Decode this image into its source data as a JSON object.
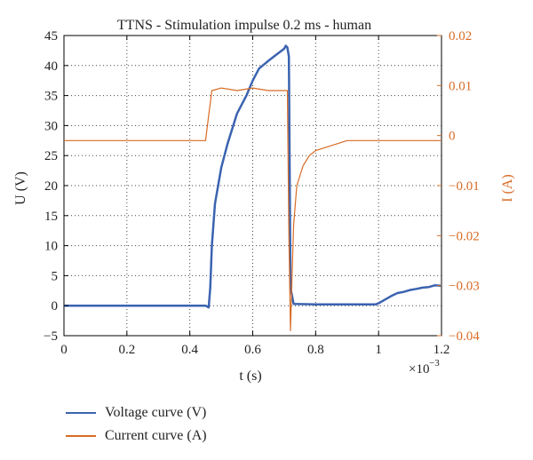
{
  "chart_data": {
    "type": "line",
    "title": "TTNS - Stimulation impulse 0.2 ms - human",
    "xlabel": "t (s)",
    "x_multiplier_label": "×10",
    "x_multiplier_exp": "−3",
    "ylabel_left": "U (V)",
    "ylabel_right": "I (A)",
    "xlim": [
      0,
      1.2
    ],
    "ylim_left": [
      -5,
      45
    ],
    "ylim_right": [
      -0.04,
      0.02
    ],
    "x_ticks": [
      "0",
      "0.2",
      "0.4",
      "0.6",
      "0.8",
      "1",
      "1.2"
    ],
    "y_left_ticks": [
      "−5",
      "0",
      "5",
      "10",
      "15",
      "20",
      "25",
      "30",
      "35",
      "40",
      "45"
    ],
    "y_right_ticks": [
      "−0.04",
      "−0.03",
      "−0.02",
      "−0.01",
      "0",
      "0.01",
      "0.02"
    ],
    "grid": true,
    "legend_placement": "bottom",
    "series": [
      {
        "name": "Voltage curve (V)",
        "axis": "left",
        "color": "#3b63b0",
        "x": [
          0,
          0.1,
          0.2,
          0.3,
          0.4,
          0.45,
          0.46,
          0.465,
          0.47,
          0.48,
          0.5,
          0.52,
          0.55,
          0.58,
          0.6,
          0.62,
          0.65,
          0.68,
          0.7,
          0.705,
          0.71,
          0.715,
          0.72,
          0.73,
          0.8,
          0.9,
          0.99,
          1.0,
          1.02,
          1.04,
          1.06,
          1.08,
          1.1,
          1.12,
          1.14,
          1.16,
          1.18,
          1.2
        ],
        "y": [
          0,
          0,
          0,
          0,
          0,
          0,
          -0.3,
          3,
          10,
          17,
          23,
          27,
          32,
          35,
          37.5,
          39.5,
          40.8,
          42,
          42.8,
          43.3,
          43,
          41.5,
          3,
          0.3,
          0.2,
          0.2,
          0.2,
          0.4,
          1,
          1.6,
          2.1,
          2.3,
          2.6,
          2.8,
          3,
          3.1,
          3.4,
          3.3
        ]
      },
      {
        "name": "Current curve (A)",
        "axis": "right",
        "color": "#d86b25",
        "x": [
          0,
          0.05,
          0.1,
          0.15,
          0.2,
          0.25,
          0.3,
          0.35,
          0.4,
          0.45,
          0.46,
          0.47,
          0.5,
          0.55,
          0.6,
          0.65,
          0.7,
          0.71,
          0.715,
          0.72,
          0.725,
          0.73,
          0.74,
          0.76,
          0.78,
          0.8,
          0.85,
          0.9,
          0.95,
          1.0,
          1.05,
          1.1,
          1.15,
          1.2
        ],
        "y": [
          -0.001,
          -0.001,
          -0.001,
          -0.001,
          -0.001,
          -0.001,
          -0.001,
          -0.001,
          -0.001,
          -0.001,
          0.004,
          0.009,
          0.0095,
          0.009,
          0.0095,
          0.009,
          0.009,
          0.009,
          -0.02,
          -0.039,
          -0.028,
          -0.018,
          -0.01,
          -0.006,
          -0.004,
          -0.003,
          -0.002,
          -0.001,
          -0.001,
          -0.001,
          -0.001,
          -0.001,
          -0.001,
          -0.001
        ]
      }
    ]
  }
}
